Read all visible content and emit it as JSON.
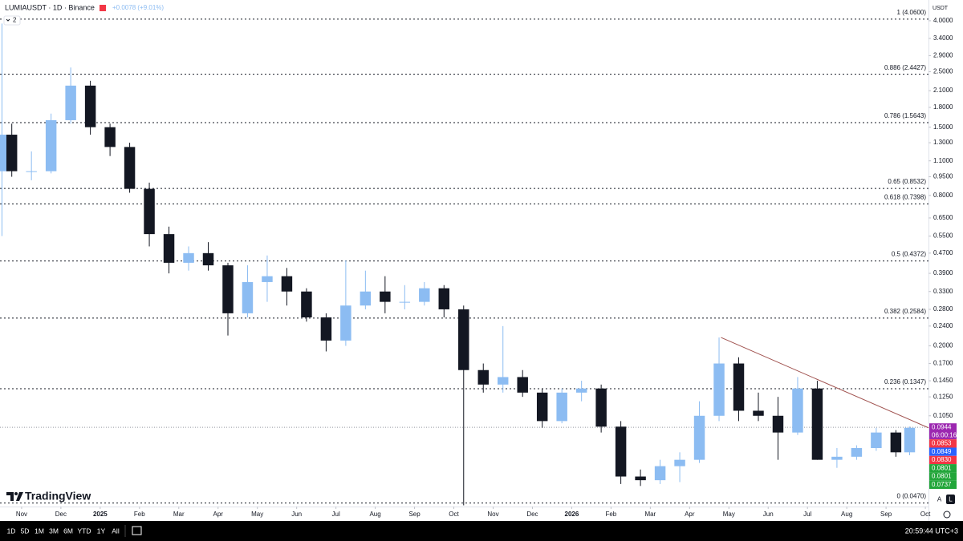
{
  "chart_data": {
    "type": "candlestick",
    "symbol": "LUMIAUSDT · 1D · Binance",
    "change": "+0.0078 (+9.01%)",
    "indicator_count": "2",
    "currency": "USDT",
    "watermark": "TradingView",
    "log_scale": true,
    "grid": false,
    "up_color": "#8cbcf2",
    "down_color": "#131722",
    "xlim": [
      0.45,
      24.08
    ],
    "xticks": [
      {
        "value": 1,
        "label": "Nov"
      },
      {
        "value": 2,
        "label": "Dec"
      },
      {
        "value": 3,
        "label": "2025"
      },
      {
        "value": 4,
        "label": "Feb"
      },
      {
        "value": 5,
        "label": "Mar"
      },
      {
        "value": 6,
        "label": "Apr"
      },
      {
        "value": 7,
        "label": "May"
      },
      {
        "value": 8,
        "label": "Jun"
      },
      {
        "value": 9,
        "label": "Jul"
      },
      {
        "value": 10,
        "label": "Aug"
      },
      {
        "value": 11,
        "label": "Sep"
      },
      {
        "value": 12,
        "label": "Oct"
      },
      {
        "value": 13,
        "label": "Nov"
      },
      {
        "value": 14,
        "label": "Dec"
      },
      {
        "value": 15,
        "label": "2026"
      },
      {
        "value": 16,
        "label": "Feb"
      },
      {
        "value": 17,
        "label": "Mar"
      },
      {
        "value": 18,
        "label": "Apr"
      },
      {
        "value": 19,
        "label": "May"
      },
      {
        "value": 20,
        "label": "Jun"
      },
      {
        "value": 21,
        "label": "Jul"
      },
      {
        "value": 22,
        "label": "Aug"
      },
      {
        "value": 23,
        "label": "Sep"
      },
      {
        "value": 24,
        "label": "Oct"
      }
    ],
    "ylim": [
      0.0455,
      4.24
    ],
    "yticks": [
      {
        "value": 4,
        "label": "4.0000"
      },
      {
        "value": 3.4,
        "label": "3.4000"
      },
      {
        "value": 2.9,
        "label": "2.9000"
      },
      {
        "value": 2.5,
        "label": "2.5000"
      },
      {
        "value": 2.1,
        "label": "2.1000"
      },
      {
        "value": 1.8,
        "label": "1.8000"
      },
      {
        "value": 1.5,
        "label": "1.5000"
      },
      {
        "value": 1.3,
        "label": "1.3000"
      },
      {
        "value": 1.1,
        "label": "1.1000"
      },
      {
        "value": 0.95,
        "label": "0.9500"
      },
      {
        "value": 0.8,
        "label": "0.8000"
      },
      {
        "value": 0.65,
        "label": "0.6500"
      },
      {
        "value": 0.55,
        "label": "0.5500"
      },
      {
        "value": 0.47,
        "label": "0.4700"
      },
      {
        "value": 0.39,
        "label": "0.3900"
      },
      {
        "value": 0.33,
        "label": "0.3300"
      },
      {
        "value": 0.28,
        "label": "0.2800"
      },
      {
        "value": 0.24,
        "label": "0.2400"
      },
      {
        "value": 0.2,
        "label": "0.2000"
      },
      {
        "value": 0.17,
        "label": "0.1700"
      },
      {
        "value": 0.145,
        "label": "0.1450"
      },
      {
        "value": 0.125,
        "label": "0.1250"
      },
      {
        "value": 0.105,
        "label": "0.1050"
      }
    ],
    "x": [
      0.5,
      0.75,
      1.25,
      1.75,
      2.25,
      2.75,
      3.25,
      3.75,
      4.25,
      4.75,
      5.25,
      5.75,
      6.25,
      6.75,
      7.25,
      7.75,
      8.25,
      8.75,
      9.25,
      9.75,
      10.25,
      10.75,
      11.25,
      11.75,
      12.25,
      12.75,
      13.25,
      13.75,
      14.25,
      14.75,
      15.25,
      15.75,
      16.25,
      16.75,
      17.25,
      17.75,
      18.25,
      18.75,
      19.25,
      19.75,
      20.25,
      20.75,
      21.25,
      21.75,
      22.25,
      22.75,
      23.25,
      23.6
    ],
    "open": [
      1.0,
      1.4,
      1.0,
      1.0,
      1.6,
      2.2,
      1.5,
      1.25,
      0.85,
      0.56,
      0.43,
      0.47,
      0.42,
      0.27,
      0.36,
      0.38,
      0.33,
      0.26,
      0.21,
      0.29,
      0.33,
      0.3,
      0.3,
      0.34,
      0.28,
      0.16,
      0.14,
      0.15,
      0.13,
      0.1,
      0.13,
      0.135,
      0.095,
      0.06,
      0.058,
      0.066,
      0.07,
      0.105,
      0.17,
      0.11,
      0.105,
      0.09,
      0.135,
      0.07,
      0.072,
      0.078,
      0.09,
      0.075
    ],
    "high": [
      3.9,
      1.55,
      1.2,
      1.7,
      2.6,
      2.3,
      1.55,
      1.3,
      0.9,
      0.6,
      0.5,
      0.52,
      0.43,
      0.42,
      0.46,
      0.41,
      0.34,
      0.27,
      0.44,
      0.4,
      0.38,
      0.35,
      0.36,
      0.35,
      0.29,
      0.17,
      0.24,
      0.16,
      0.135,
      0.135,
      0.145,
      0.14,
      0.1,
      0.064,
      0.07,
      0.075,
      0.12,
      0.216,
      0.18,
      0.13,
      0.125,
      0.15,
      0.145,
      0.078,
      0.08,
      0.094,
      0.092,
      0.095
    ],
    "low": [
      0.55,
      0.95,
      0.92,
      0.98,
      1.55,
      1.4,
      1.15,
      0.82,
      0.5,
      0.39,
      0.4,
      0.4,
      0.22,
      0.26,
      0.3,
      0.29,
      0.25,
      0.19,
      0.2,
      0.28,
      0.27,
      0.28,
      0.29,
      0.26,
      0.046,
      0.13,
      0.13,
      0.125,
      0.094,
      0.098,
      0.12,
      0.09,
      0.056,
      0.055,
      0.056,
      0.057,
      0.068,
      0.1,
      0.1,
      0.1,
      0.07,
      0.088,
      0.07,
      0.065,
      0.07,
      0.076,
      0.072,
      0.073
    ],
    "close": [
      1.4,
      1.0,
      1.0,
      1.6,
      2.2,
      1.5,
      1.25,
      0.85,
      0.56,
      0.43,
      0.47,
      0.42,
      0.27,
      0.36,
      0.38,
      0.33,
      0.26,
      0.21,
      0.29,
      0.33,
      0.3,
      0.3,
      0.34,
      0.28,
      0.16,
      0.14,
      0.15,
      0.13,
      0.1,
      0.13,
      0.135,
      0.095,
      0.06,
      0.058,
      0.066,
      0.07,
      0.105,
      0.17,
      0.11,
      0.105,
      0.09,
      0.135,
      0.07,
      0.072,
      0.078,
      0.09,
      0.075,
      0.094
    ],
    "fib_levels": [
      {
        "label": "1 (4.0600)",
        "price": 4.06
      },
      {
        "label": "0.886 (2.4427)",
        "price": 2.4427
      },
      {
        "label": "0.786 (1.5643)",
        "price": 1.5643
      },
      {
        "label": "0.65 (0.8532)",
        "price": 0.8532
      },
      {
        "label": "0.618 (0.7398)",
        "price": 0.7398
      },
      {
        "label": "0.5 (0.4372)",
        "price": 0.4372
      },
      {
        "label": "0.382 (0.2584)",
        "price": 0.2584
      },
      {
        "label": "0.236 (0.1347)",
        "price": 0.1347
      },
      {
        "label": "0 (0.0470)",
        "price": 0.047
      }
    ],
    "trendline": {
      "x": [
        18.8,
        24.08
      ],
      "y": [
        0.216,
        0.094
      ],
      "color": "#a0524f"
    },
    "last_price": 0.0944,
    "price_boxes": [
      {
        "value": 0.0944,
        "label": "0.0944",
        "sub": "06:00:16",
        "color": "#9c27b0"
      },
      {
        "value": 0.0853,
        "label": "0.0853",
        "color": "#f23645"
      },
      {
        "value": 0.0849,
        "label": "0.0849",
        "color": "#2962ff"
      },
      {
        "value": 0.083,
        "label": "0.0830",
        "color": "#f23645"
      },
      {
        "value": 0.0801,
        "label": "0.0801",
        "color": "#22a63a"
      },
      {
        "value": 0.0801,
        "label": "0.0801",
        "color": "#22a63a"
      },
      {
        "value": 0.0737,
        "label": "0.0737",
        "color": "#22a63a"
      }
    ],
    "scale_buttons": [
      "A",
      "L"
    ],
    "timeframes": [
      "1D",
      "5D",
      "1M",
      "3M",
      "6M",
      "YTD",
      "1Y",
      "All"
    ],
    "clock": "20:59:44 UTC+3"
  }
}
